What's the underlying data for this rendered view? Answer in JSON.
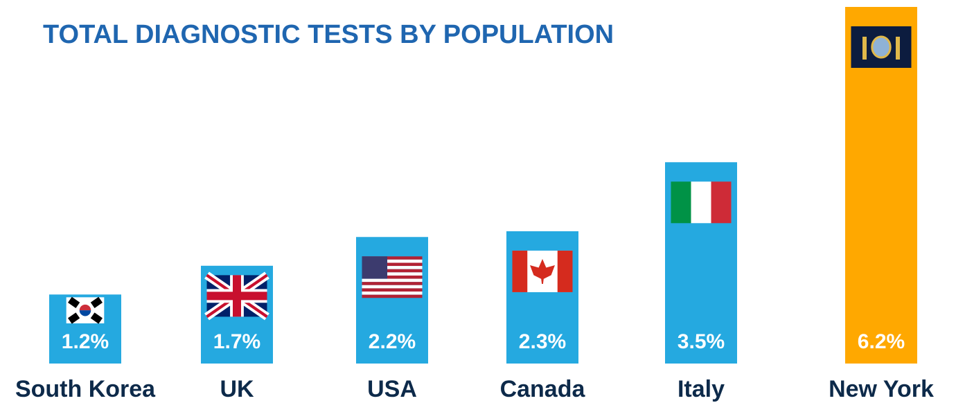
{
  "chart_data": {
    "type": "bar",
    "title": "TOTAL DIAGNOSTIC TESTS BY POPULATION",
    "categories": [
      "South Korea",
      "UK",
      "USA",
      "Canada",
      "Italy",
      "New York"
    ],
    "values": [
      1.2,
      1.7,
      2.2,
      2.3,
      3.5,
      6.2
    ],
    "value_labels": [
      "1.2%",
      "1.7%",
      "2.2%",
      "2.3%",
      "3.5%",
      "6.2%"
    ],
    "colors": [
      "#25a9e0",
      "#25a9e0",
      "#25a9e0",
      "#25a9e0",
      "#25a9e0",
      "#ffa800"
    ]
  }
}
